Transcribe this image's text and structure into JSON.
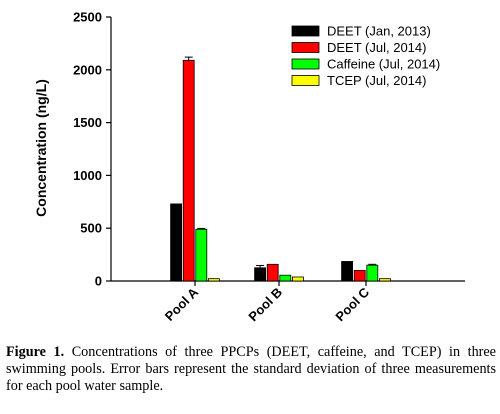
{
  "chart_data": {
    "type": "bar",
    "title": "",
    "xlabel": "",
    "ylabel": "Concentration (ng/L)",
    "ylim": [
      0,
      2500
    ],
    "yticks": [
      0,
      500,
      1000,
      1500,
      2000,
      2500
    ],
    "categories": [
      "Pool A",
      "Pool B",
      "Pool C"
    ],
    "legend_position": "top-right",
    "grid": false,
    "series": [
      {
        "name": "DEET (Jan, 2013)",
        "color": "#000000",
        "values": [
          730,
          125,
          185
        ],
        "errors": [
          0,
          22,
          0
        ]
      },
      {
        "name": "DEET (Jul, 2014)",
        "color": "#ff0000",
        "values": [
          2090,
          158,
          100
        ],
        "errors": [
          30,
          0,
          0
        ]
      },
      {
        "name": "Caffeine (Jul, 2014)",
        "color": "#00ff00",
        "values": [
          490,
          55,
          150
        ],
        "errors": [
          8,
          0,
          8
        ]
      },
      {
        "name": "TCEP (Jul, 2014)",
        "color": "#ffff00",
        "values": [
          22,
          38,
          22
        ],
        "errors": [
          0,
          0,
          0
        ]
      }
    ]
  },
  "caption": {
    "label": "Figure 1.",
    "text": " Concentrations of three PPCPs (DEET, caffeine, and TCEP) in three swimming pools. Error bars represent the standard deviation of three measurements for each pool water sample."
  }
}
